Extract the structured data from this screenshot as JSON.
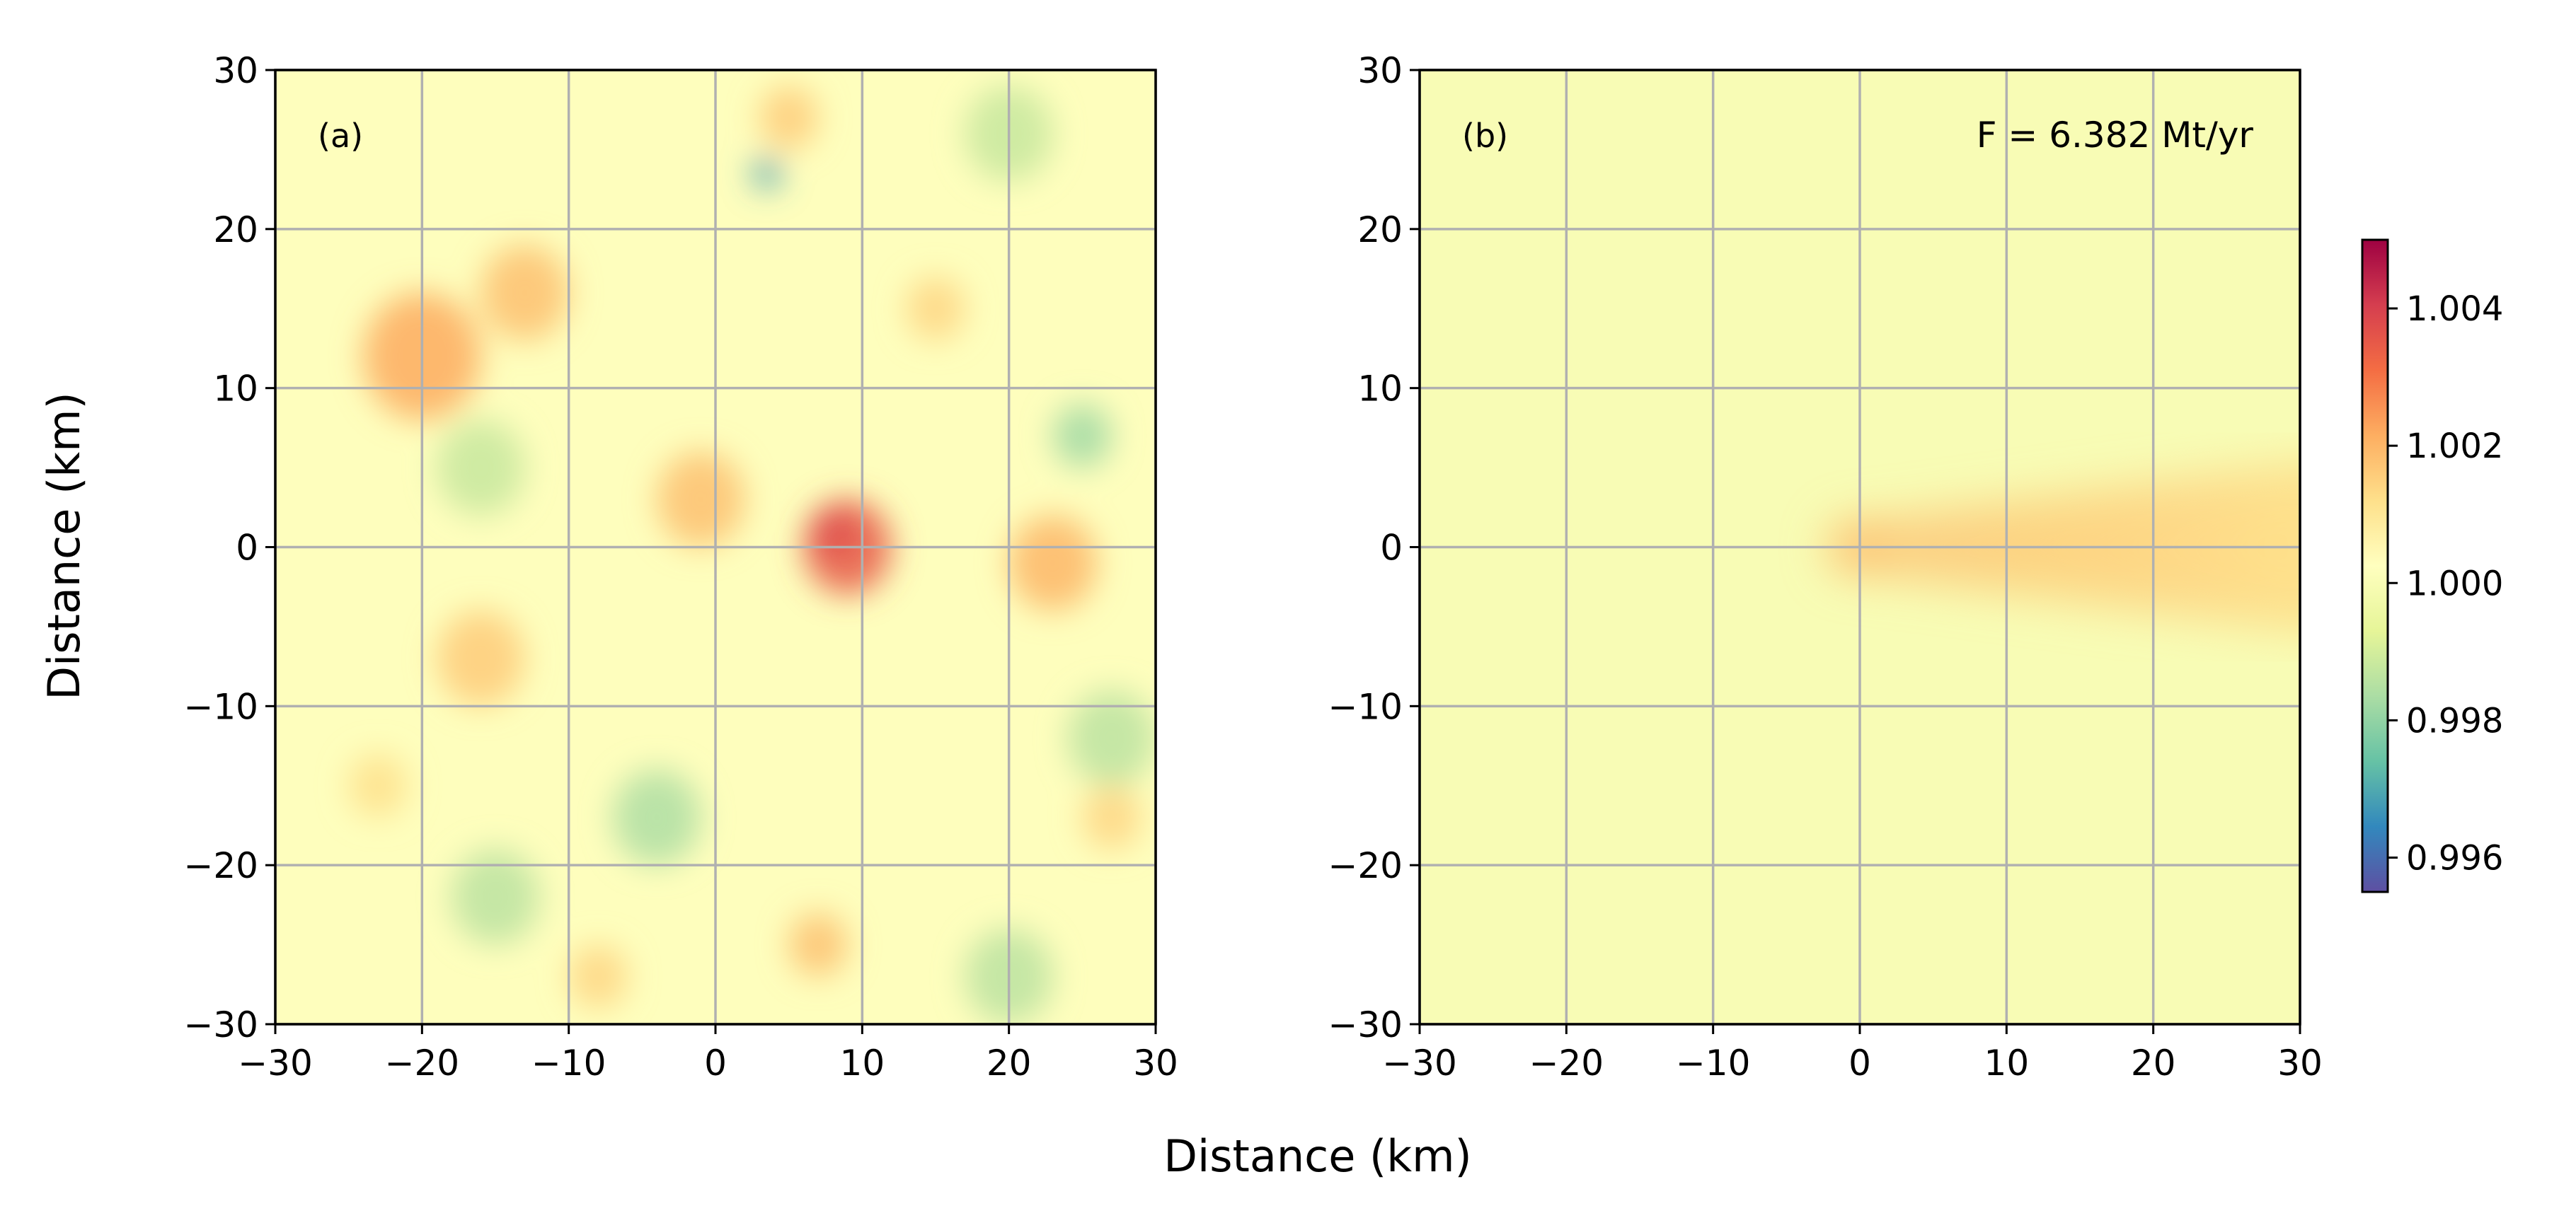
{
  "figure": {
    "xlabel": "Distance (km)",
    "ylabel": "Distance (km)"
  },
  "chart_data": [
    {
      "type": "heatmap",
      "panel_label": "(a)",
      "annotation": "",
      "xlim": [
        -30,
        30
      ],
      "ylim": [
        -30,
        30
      ],
      "xticks": [
        -30,
        -20,
        -10,
        0,
        10,
        20,
        30
      ],
      "yticks": [
        -30,
        -20,
        -10,
        0,
        10,
        20,
        30
      ],
      "xtick_labels": [
        "−30",
        "−20",
        "−10",
        "0",
        "10",
        "20",
        "30"
      ],
      "ytick_labels": [
        "−30",
        "−20",
        "−10",
        "0",
        "10",
        "20",
        "30"
      ],
      "grid": true,
      "background_value": 1.0002,
      "hotspots": [
        {
          "x": 9,
          "y": 0,
          "value": 1.0035,
          "radius_km": 3
        },
        {
          "x": 8,
          "y": 1,
          "value": 1.0038,
          "radius_km": 1.5
        },
        {
          "x": -20,
          "y": 12,
          "value": 1.0022,
          "radius_km": 4
        },
        {
          "x": -13,
          "y": 16,
          "value": 1.0018,
          "radius_km": 3
        },
        {
          "x": -1,
          "y": 3,
          "value": 1.0018,
          "radius_km": 3
        },
        {
          "x": 5,
          "y": 27,
          "value": 1.0016,
          "radius_km": 2
        },
        {
          "x": 23,
          "y": -1,
          "value": 1.002,
          "radius_km": 3
        },
        {
          "x": 27,
          "y": -17,
          "value": 1.0014,
          "radius_km": 2
        },
        {
          "x": -16,
          "y": -7,
          "value": 1.0016,
          "radius_km": 3
        },
        {
          "x": 7,
          "y": -25,
          "value": 1.0018,
          "radius_km": 2
        },
        {
          "x": -8,
          "y": -27,
          "value": 1.0014,
          "radius_km": 2
        },
        {
          "x": -23,
          "y": -15,
          "value": 1.0012,
          "radius_km": 2
        },
        {
          "x": 15,
          "y": 15,
          "value": 1.0014,
          "radius_km": 2
        },
        {
          "x": 3.5,
          "y": 23.5,
          "value": 0.9968,
          "radius_km": 1
        },
        {
          "x": -15,
          "y": -22,
          "value": 0.9986,
          "radius_km": 3
        },
        {
          "x": -4,
          "y": -17,
          "value": 0.9984,
          "radius_km": 3
        },
        {
          "x": 25,
          "y": 7,
          "value": 0.9982,
          "radius_km": 2
        },
        {
          "x": 20,
          "y": -27,
          "value": 0.9986,
          "radius_km": 3
        },
        {
          "x": 27,
          "y": -12,
          "value": 0.9986,
          "radius_km": 3
        },
        {
          "x": -16,
          "y": 5,
          "value": 0.9988,
          "radius_km": 3
        },
        {
          "x": 20,
          "y": 26,
          "value": 0.9988,
          "radius_km": 3
        }
      ]
    },
    {
      "type": "heatmap",
      "panel_label": "(b)",
      "annotation": "F = 6.382 Mt/yr",
      "xlim": [
        -30,
        30
      ],
      "ylim": [
        -30,
        30
      ],
      "xticks": [
        -30,
        -20,
        -10,
        0,
        10,
        20,
        30
      ],
      "yticks": [
        -30,
        -20,
        -10,
        0,
        10,
        20,
        30
      ],
      "xtick_labels": [
        "−30",
        "−20",
        "−10",
        "0",
        "10",
        "20",
        "30"
      ],
      "ytick_labels": [
        "−30",
        "−20",
        "−10",
        "0",
        "10",
        "20",
        "30"
      ],
      "grid": true,
      "background_value": 1.0,
      "plume": {
        "source_x": 0,
        "source_y": 0,
        "direction": "east",
        "value_at_source": 1.0018,
        "value_at_far_edge": 1.0012,
        "half_width_km_at_source": 2,
        "half_width_km_at_far_edge": 6
      }
    }
  ],
  "colorbar": {
    "colormap": "Spectral_r",
    "vmin": 0.9955,
    "vmax": 1.005,
    "ticks": [
      0.996,
      0.998,
      1.0,
      1.002,
      1.004
    ],
    "tick_labels": [
      "0.996",
      "0.998",
      "1.000",
      "1.002",
      "1.004"
    ],
    "colors": [
      "#5e4fa2",
      "#3288bd",
      "#66c2a5",
      "#abdda4",
      "#e6f598",
      "#ffffbf",
      "#fee08b",
      "#fdae61",
      "#f46d43",
      "#d53e4f",
      "#9e0142"
    ]
  }
}
